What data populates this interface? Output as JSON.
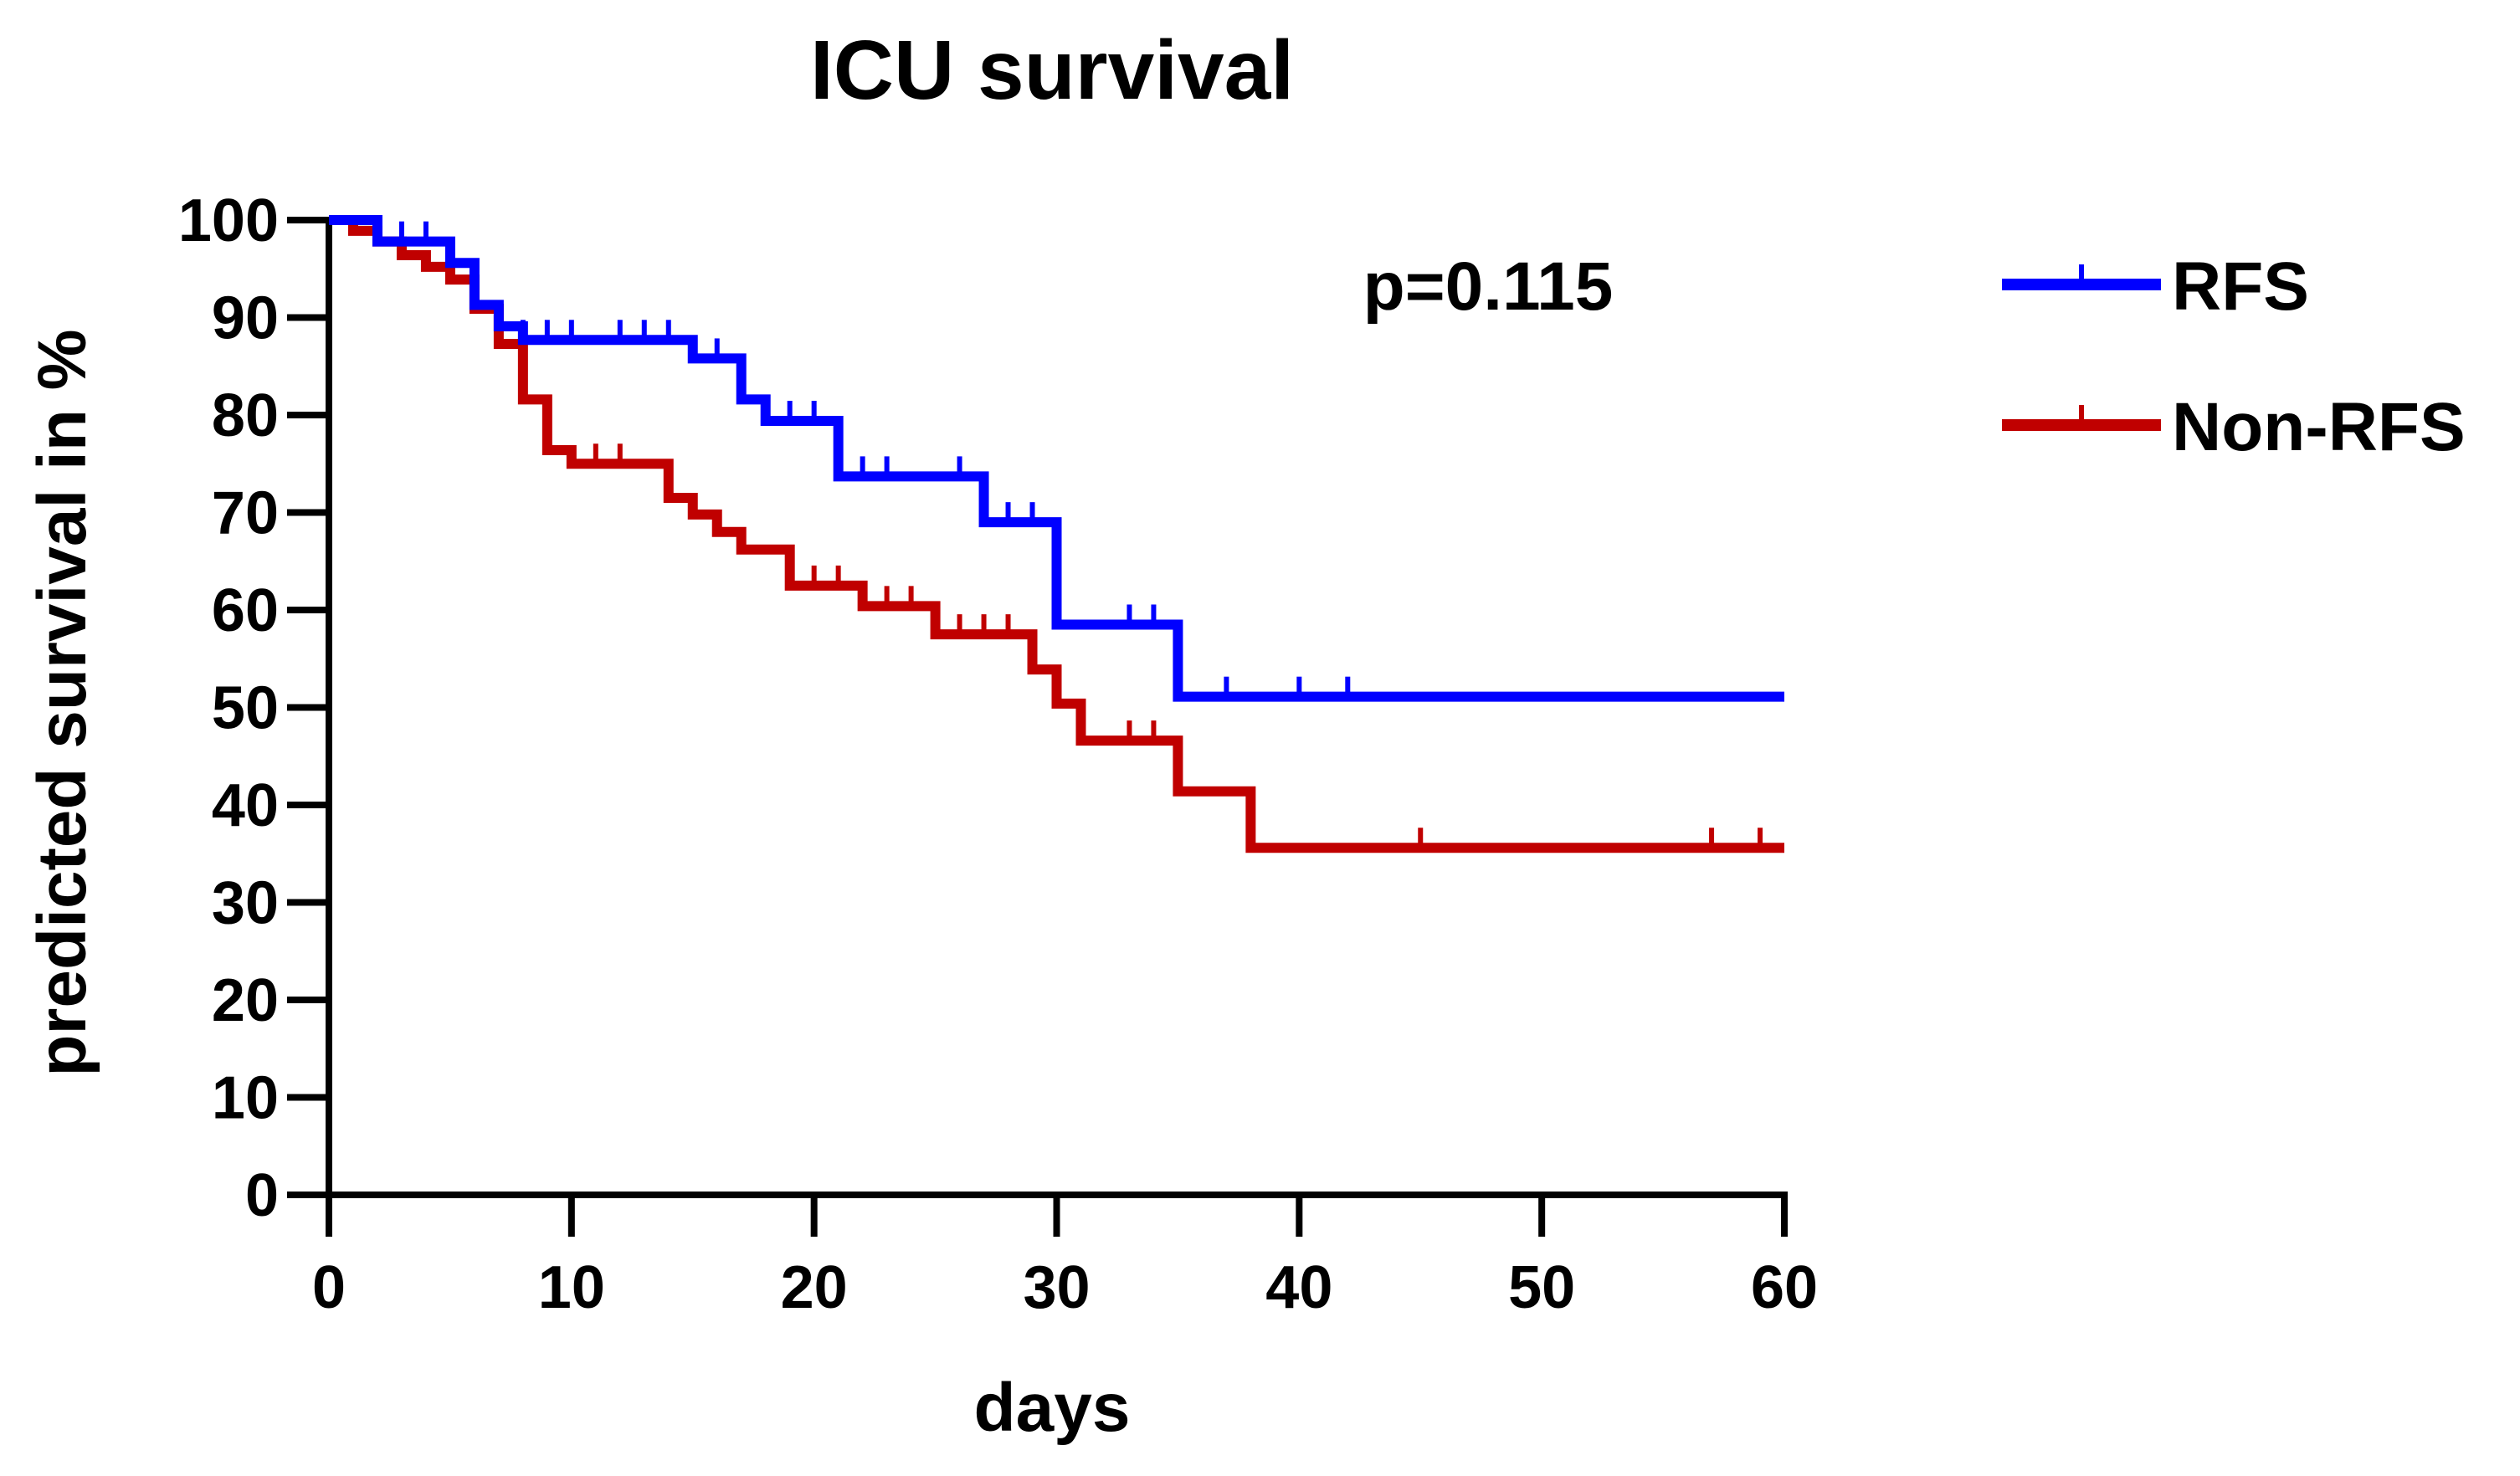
{
  "chart_data": {
    "type": "line",
    "title": "ICU survival",
    "xlabel": "days",
    "ylabel": "predicted survival in %",
    "xlim": [
      0,
      60
    ],
    "ylim": [
      0,
      100
    ],
    "xticks": [
      0,
      10,
      20,
      30,
      40,
      50,
      60
    ],
    "yticks": [
      0,
      10,
      20,
      30,
      40,
      50,
      60,
      70,
      80,
      90,
      100
    ],
    "annotation": "p=0.115",
    "legend_position": "right",
    "series": [
      {
        "name": "RFS",
        "color": "#0000ff",
        "steps": [
          [
            0,
            100
          ],
          [
            2,
            97.8
          ],
          [
            4,
            97.8
          ],
          [
            5,
            95.6
          ],
          [
            6,
            91.3
          ],
          [
            7,
            89.1
          ],
          [
            8,
            87.7
          ],
          [
            15,
            87.7
          ],
          [
            15,
            85.8
          ],
          [
            17,
            85.8
          ],
          [
            17,
            81.6
          ],
          [
            18,
            79.4
          ],
          [
            21,
            79.4
          ],
          [
            21,
            73.7
          ],
          [
            27,
            73.7
          ],
          [
            27,
            69.0
          ],
          [
            30,
            69.0
          ],
          [
            30,
            58.5
          ],
          [
            35,
            58.5
          ],
          [
            35,
            51.1
          ],
          [
            60,
            51.1
          ]
        ],
        "censored": [
          [
            3,
            97.8
          ],
          [
            4,
            97.8
          ],
          [
            8,
            87.7
          ],
          [
            9,
            87.7
          ],
          [
            10,
            87.7
          ],
          [
            12,
            87.7
          ],
          [
            13,
            87.7
          ],
          [
            14,
            87.7
          ],
          [
            16,
            85.8
          ],
          [
            19,
            79.4
          ],
          [
            20,
            79.4
          ],
          [
            22,
            73.7
          ],
          [
            23,
            73.7
          ],
          [
            26,
            73.7
          ],
          [
            28,
            69.0
          ],
          [
            29,
            69.0
          ],
          [
            33,
            58.5
          ],
          [
            34,
            58.5
          ],
          [
            37,
            51.1
          ],
          [
            40,
            51.1
          ],
          [
            42,
            51.1
          ]
        ]
      },
      {
        "name": "Non-RFS",
        "color": "#c00000",
        "steps": [
          [
            0,
            100
          ],
          [
            1,
            98.9
          ],
          [
            2,
            97.8
          ],
          [
            3,
            96.4
          ],
          [
            4,
            95.2
          ],
          [
            5,
            93.9
          ],
          [
            6,
            90.9
          ],
          [
            7,
            87.3
          ],
          [
            8,
            81.6
          ],
          [
            9,
            76.4
          ],
          [
            10,
            75.0
          ],
          [
            14,
            75.0
          ],
          [
            14,
            71.5
          ],
          [
            15,
            69.8
          ],
          [
            16,
            68.0
          ],
          [
            17,
            66.2
          ],
          [
            19,
            66.2
          ],
          [
            19,
            62.5
          ],
          [
            22,
            62.5
          ],
          [
            22,
            60.4
          ],
          [
            25,
            60.4
          ],
          [
            25,
            57.5
          ],
          [
            29,
            57.5
          ],
          [
            29,
            53.9
          ],
          [
            30,
            50.4
          ],
          [
            31,
            46.6
          ],
          [
            35,
            46.6
          ],
          [
            35,
            41.4
          ],
          [
            38,
            41.4
          ],
          [
            38,
            35.6
          ],
          [
            60,
            35.6
          ]
        ],
        "censored": [
          [
            11,
            75.0
          ],
          [
            12,
            75.0
          ],
          [
            20,
            62.5
          ],
          [
            21,
            62.5
          ],
          [
            23,
            60.4
          ],
          [
            24,
            60.4
          ],
          [
            26,
            57.5
          ],
          [
            27,
            57.5
          ],
          [
            28,
            57.5
          ],
          [
            33,
            46.6
          ],
          [
            34,
            46.6
          ],
          [
            45,
            35.6
          ],
          [
            57,
            35.6
          ],
          [
            59,
            35.6
          ]
        ]
      }
    ]
  }
}
